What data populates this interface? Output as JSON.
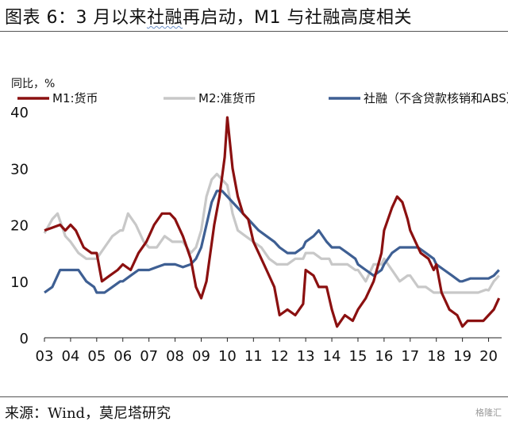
{
  "header": {
    "title_prefix": "图表 6：3 月以来",
    "title_highlight": "社融",
    "title_suffix": "再启动，M1 与社融高度相关"
  },
  "footer": {
    "source": "来源：Wind，莫尼塔研究",
    "watermark": "格隆汇"
  },
  "chart_data": {
    "type": "line",
    "ylabel": "同比，%",
    "ylim": [
      0,
      40
    ],
    "yticks": [
      0,
      10,
      20,
      30,
      40
    ],
    "xlim": [
      2003,
      2020.5
    ],
    "xtick_labels": [
      "03",
      "04",
      "05",
      "06",
      "07",
      "08",
      "09",
      "10",
      "11",
      "12",
      "13",
      "14",
      "15",
      "16",
      "17",
      "18",
      "19",
      "20"
    ],
    "legend_position": "top",
    "grid": false,
    "series": [
      {
        "name": "M1:货币",
        "color": "#8b1010",
        "points": [
          [
            2003.0,
            19
          ],
          [
            2003.3,
            19.5
          ],
          [
            2003.6,
            20
          ],
          [
            2003.8,
            19
          ],
          [
            2004.0,
            20
          ],
          [
            2004.2,
            19
          ],
          [
            2004.5,
            16
          ],
          [
            2004.8,
            15
          ],
          [
            2005.0,
            15
          ],
          [
            2005.2,
            10
          ],
          [
            2005.5,
            11
          ],
          [
            2005.8,
            12
          ],
          [
            2006.0,
            13
          ],
          [
            2006.3,
            12
          ],
          [
            2006.6,
            15
          ],
          [
            2006.9,
            17
          ],
          [
            2007.0,
            18
          ],
          [
            2007.2,
            20
          ],
          [
            2007.5,
            22
          ],
          [
            2007.8,
            22
          ],
          [
            2008.0,
            21
          ],
          [
            2008.3,
            18
          ],
          [
            2008.6,
            14
          ],
          [
            2008.8,
            9
          ],
          [
            2009.0,
            7
          ],
          [
            2009.2,
            10
          ],
          [
            2009.5,
            20
          ],
          [
            2009.7,
            25
          ],
          [
            2009.9,
            32
          ],
          [
            2010.0,
            39
          ],
          [
            2010.2,
            30
          ],
          [
            2010.4,
            25
          ],
          [
            2010.6,
            22
          ],
          [
            2010.8,
            21
          ],
          [
            2011.0,
            17
          ],
          [
            2011.2,
            15
          ],
          [
            2011.5,
            12
          ],
          [
            2011.8,
            9
          ],
          [
            2012.0,
            4
          ],
          [
            2012.3,
            5
          ],
          [
            2012.6,
            4
          ],
          [
            2012.9,
            6
          ],
          [
            2013.0,
            12
          ],
          [
            2013.3,
            11
          ],
          [
            2013.5,
            9
          ],
          [
            2013.8,
            9
          ],
          [
            2014.0,
            5
          ],
          [
            2014.2,
            2
          ],
          [
            2014.5,
            4
          ],
          [
            2014.8,
            3
          ],
          [
            2015.0,
            5
          ],
          [
            2015.3,
            7
          ],
          [
            2015.6,
            10
          ],
          [
            2015.9,
            15
          ],
          [
            2016.0,
            19
          ],
          [
            2016.3,
            23
          ],
          [
            2016.5,
            25
          ],
          [
            2016.7,
            24
          ],
          [
            2016.9,
            21
          ],
          [
            2017.0,
            19
          ],
          [
            2017.2,
            17
          ],
          [
            2017.4,
            15
          ],
          [
            2017.7,
            14
          ],
          [
            2017.9,
            12
          ],
          [
            2018.0,
            13
          ],
          [
            2018.2,
            8
          ],
          [
            2018.5,
            5
          ],
          [
            2018.8,
            4
          ],
          [
            2019.0,
            2
          ],
          [
            2019.2,
            3
          ],
          [
            2019.5,
            3
          ],
          [
            2019.8,
            3
          ],
          [
            2020.0,
            4
          ],
          [
            2020.2,
            5
          ],
          [
            2020.4,
            7
          ]
        ]
      },
      {
        "name": "M2:准货币",
        "color": "#c8c8c8",
        "points": [
          [
            2003.0,
            18.5
          ],
          [
            2003.3,
            21
          ],
          [
            2003.5,
            22
          ],
          [
            2003.8,
            18
          ],
          [
            2004.0,
            17
          ],
          [
            2004.3,
            15
          ],
          [
            2004.6,
            14
          ],
          [
            2005.0,
            14
          ],
          [
            2005.3,
            16
          ],
          [
            2005.6,
            18
          ],
          [
            2005.9,
            19
          ],
          [
            2006.0,
            19
          ],
          [
            2006.2,
            22
          ],
          [
            2006.5,
            20
          ],
          [
            2006.8,
            17
          ],
          [
            2007.0,
            16
          ],
          [
            2007.3,
            16
          ],
          [
            2007.6,
            18
          ],
          [
            2007.9,
            17
          ],
          [
            2008.0,
            17
          ],
          [
            2008.3,
            17
          ],
          [
            2008.6,
            15
          ],
          [
            2008.8,
            16
          ],
          [
            2009.0,
            19
          ],
          [
            2009.2,
            25
          ],
          [
            2009.4,
            28
          ],
          [
            2009.6,
            29
          ],
          [
            2009.8,
            28
          ],
          [
            2010.0,
            27
          ],
          [
            2010.2,
            22
          ],
          [
            2010.4,
            19
          ],
          [
            2010.7,
            18
          ],
          [
            2011.0,
            17
          ],
          [
            2011.3,
            16
          ],
          [
            2011.6,
            14
          ],
          [
            2011.9,
            13
          ],
          [
            2012.0,
            13
          ],
          [
            2012.3,
            13
          ],
          [
            2012.6,
            14
          ],
          [
            2012.9,
            14
          ],
          [
            2013.0,
            15
          ],
          [
            2013.3,
            15
          ],
          [
            2013.6,
            14
          ],
          [
            2013.9,
            14
          ],
          [
            2014.0,
            13
          ],
          [
            2014.3,
            13
          ],
          [
            2014.6,
            13
          ],
          [
            2014.9,
            12
          ],
          [
            2015.0,
            12
          ],
          [
            2015.3,
            10
          ],
          [
            2015.6,
            13
          ],
          [
            2015.9,
            13
          ],
          [
            2016.0,
            14
          ],
          [
            2016.3,
            12
          ],
          [
            2016.6,
            10
          ],
          [
            2016.9,
            11
          ],
          [
            2017.0,
            11
          ],
          [
            2017.3,
            9
          ],
          [
            2017.6,
            9
          ],
          [
            2017.9,
            8
          ],
          [
            2018.0,
            8
          ],
          [
            2018.3,
            8
          ],
          [
            2018.6,
            8
          ],
          [
            2018.9,
            8
          ],
          [
            2019.0,
            8
          ],
          [
            2019.3,
            8
          ],
          [
            2019.6,
            8
          ],
          [
            2019.9,
            8.5
          ],
          [
            2020.0,
            8.4
          ],
          [
            2020.2,
            10
          ],
          [
            2020.4,
            11
          ]
        ]
      },
      {
        "name": "社融（不含贷款核销和ABS）",
        "color": "#3e5f93",
        "points": [
          [
            2003.0,
            8
          ],
          [
            2003.3,
            9
          ],
          [
            2003.6,
            12
          ],
          [
            2003.9,
            12
          ],
          [
            2004.0,
            12
          ],
          [
            2004.3,
            12
          ],
          [
            2004.6,
            10
          ],
          [
            2004.9,
            9
          ],
          [
            2005.0,
            8
          ],
          [
            2005.3,
            8
          ],
          [
            2005.6,
            9
          ],
          [
            2005.9,
            10
          ],
          [
            2006.0,
            10
          ],
          [
            2006.3,
            11
          ],
          [
            2006.6,
            12
          ],
          [
            2006.9,
            12
          ],
          [
            2007.0,
            12
          ],
          [
            2007.3,
            12.5
          ],
          [
            2007.6,
            13
          ],
          [
            2007.9,
            13
          ],
          [
            2008.0,
            13
          ],
          [
            2008.3,
            12.5
          ],
          [
            2008.6,
            13
          ],
          [
            2008.8,
            14
          ],
          [
            2009.0,
            16
          ],
          [
            2009.2,
            20
          ],
          [
            2009.4,
            24
          ],
          [
            2009.6,
            26
          ],
          [
            2009.8,
            26
          ],
          [
            2010.0,
            25
          ],
          [
            2010.2,
            24
          ],
          [
            2010.4,
            23
          ],
          [
            2010.6,
            22
          ],
          [
            2010.8,
            21
          ],
          [
            2011.0,
            20
          ],
          [
            2011.2,
            19
          ],
          [
            2011.5,
            18
          ],
          [
            2011.8,
            17
          ],
          [
            2012.0,
            16
          ],
          [
            2012.3,
            15
          ],
          [
            2012.6,
            15
          ],
          [
            2012.9,
            16
          ],
          [
            2013.0,
            17
          ],
          [
            2013.3,
            18
          ],
          [
            2013.5,
            19
          ],
          [
            2013.8,
            17
          ],
          [
            2014.0,
            16
          ],
          [
            2014.3,
            16
          ],
          [
            2014.6,
            15
          ],
          [
            2014.9,
            14
          ],
          [
            2015.0,
            13
          ],
          [
            2015.3,
            12
          ],
          [
            2015.6,
            11
          ],
          [
            2015.9,
            12
          ],
          [
            2016.0,
            13
          ],
          [
            2016.3,
            15
          ],
          [
            2016.6,
            16
          ],
          [
            2016.9,
            16
          ],
          [
            2017.0,
            16
          ],
          [
            2017.3,
            16
          ],
          [
            2017.6,
            15
          ],
          [
            2017.9,
            14
          ],
          [
            2018.0,
            13
          ],
          [
            2018.3,
            12
          ],
          [
            2018.6,
            11
          ],
          [
            2018.9,
            10
          ],
          [
            2019.0,
            10
          ],
          [
            2019.3,
            10.5
          ],
          [
            2019.6,
            10.5
          ],
          [
            2019.9,
            10.5
          ],
          [
            2020.0,
            10.5
          ],
          [
            2020.2,
            11
          ],
          [
            2020.4,
            12
          ]
        ]
      }
    ]
  }
}
